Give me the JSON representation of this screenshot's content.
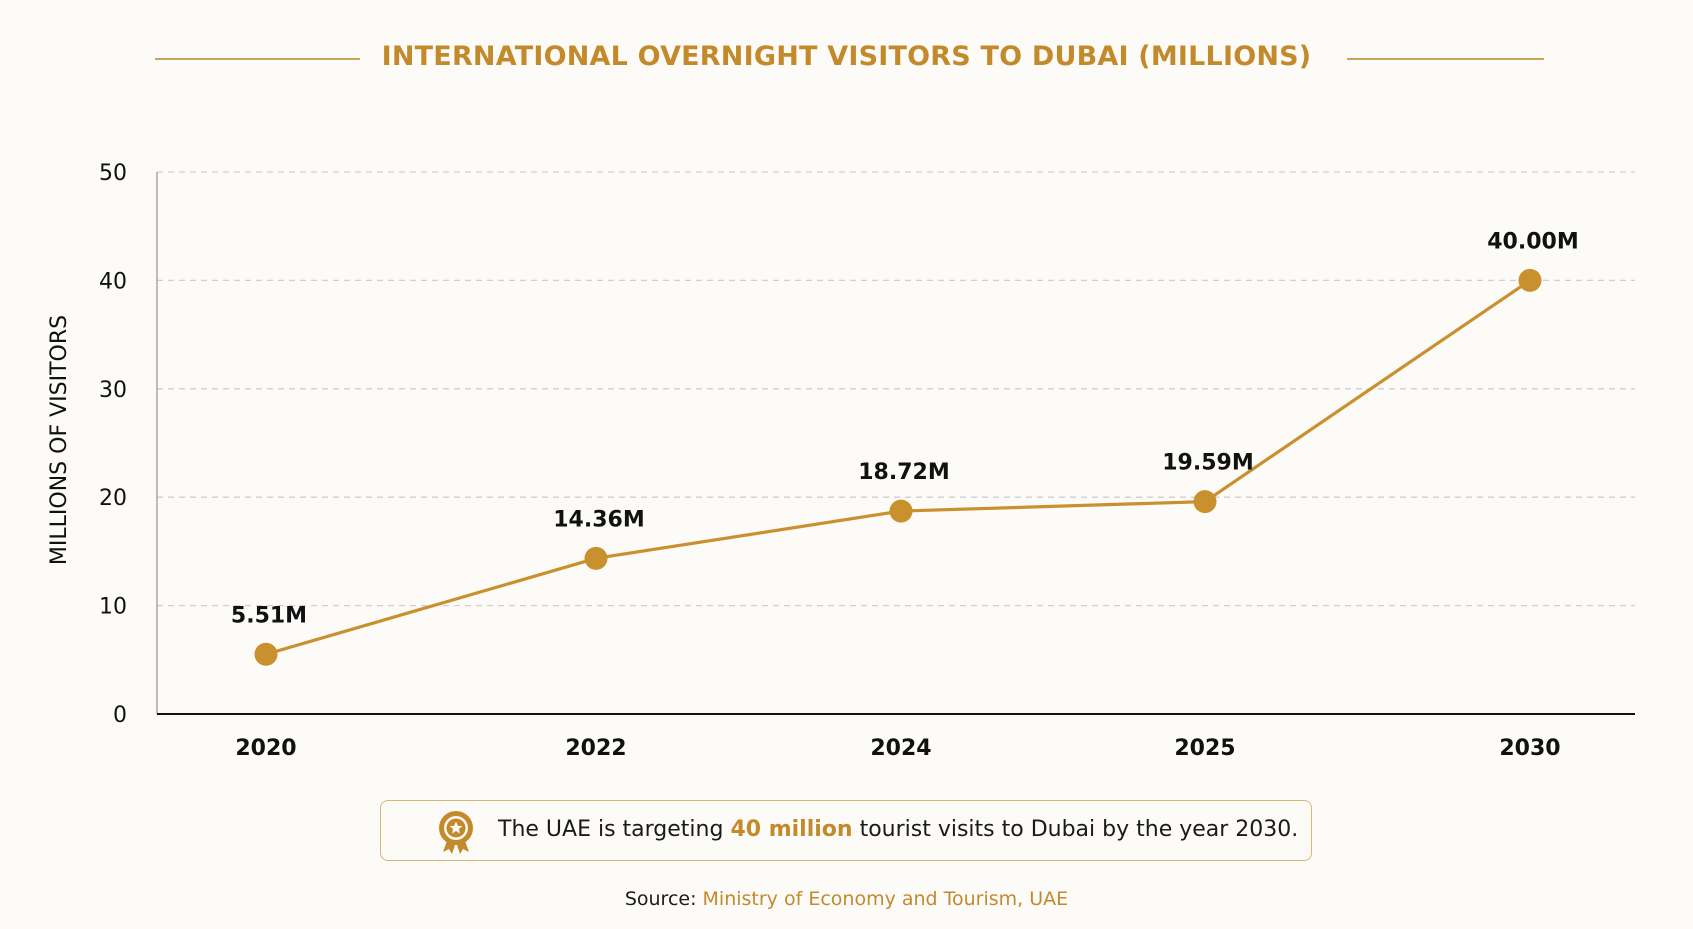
{
  "title": "INTERNATIONAL OVERNIGHT VISITORS TO DUBAI (MILLIONS)",
  "colors": {
    "accent": "#c38a2c",
    "line": "#c9902e",
    "grid": "#cfcfcf",
    "axis": "#111111"
  },
  "chart_data": {
    "type": "line",
    "categories": [
      "2020",
      "2022",
      "2024",
      "2025",
      "2030"
    ],
    "values": [
      5.51,
      14.36,
      18.72,
      19.59,
      40.0
    ],
    "data_labels": [
      "5.51M",
      "14.36M",
      "18.72M",
      "19.59M",
      "40.00M"
    ],
    "ylabel": "MILLIONS OF VISITORS",
    "xlabel": "",
    "ylim": [
      0,
      50
    ],
    "yticks": [
      "0",
      "10",
      "20",
      "30",
      "40",
      "50"
    ],
    "grid": true,
    "legend": "none"
  },
  "note": {
    "icon": "award-medal-icon",
    "prefix": "The UAE is targeting ",
    "highlight": "40 million",
    "suffix": " tourist visits to Dubai by the year 2030."
  },
  "source": {
    "label": "Source: ",
    "org": "Ministry of Economy and Tourism, UAE"
  }
}
